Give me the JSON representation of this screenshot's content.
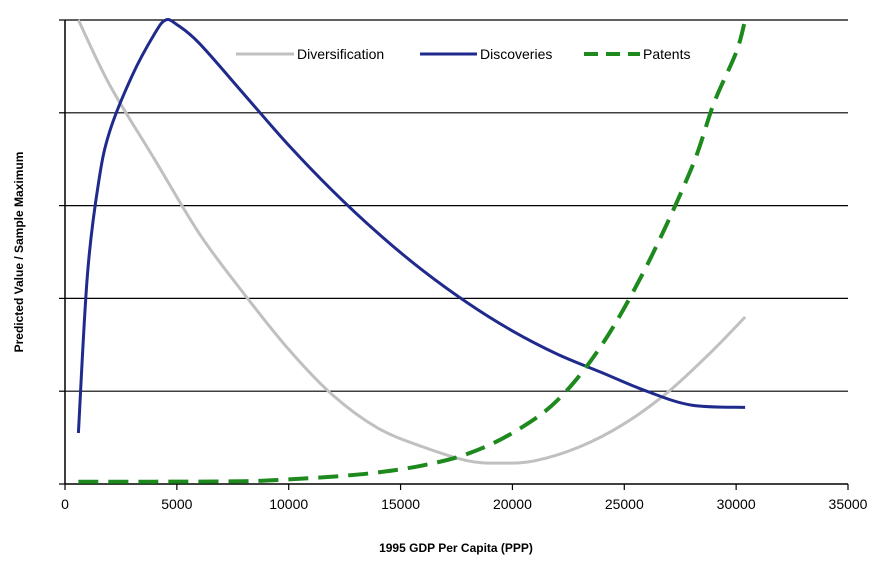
{
  "chart_data": {
    "type": "line",
    "xlabel": "1995 GDP Per Capita (PPP)",
    "ylabel": "Predicted Value / Sample Maximum",
    "xlim": [
      0,
      35000
    ],
    "ylim": [
      0,
      1
    ],
    "x_ticks": [
      "0",
      "5000",
      "10000",
      "15000",
      "20000",
      "25000",
      "30000",
      "35000"
    ],
    "y_gridlines": [
      0.2,
      0.4,
      0.6,
      0.8,
      1.0
    ],
    "grid": "horizontal",
    "legend_position": "top-right",
    "series": [
      {
        "name": "Diversification",
        "color": "#c0c0c0",
        "style": "solid",
        "x": [
          600,
          2000,
          4000,
          6000,
          8000,
          10000,
          12000,
          14000,
          16000,
          18000,
          19500,
          21000,
          23000,
          25000,
          27000,
          29000,
          30400
        ],
        "y": [
          1.0,
          0.86,
          0.7,
          0.54,
          0.41,
          0.29,
          0.19,
          0.12,
          0.08,
          0.05,
          0.045,
          0.05,
          0.08,
          0.13,
          0.2,
          0.29,
          0.36
        ]
      },
      {
        "name": "Discoveries",
        "color": "#1f2a8c",
        "style": "solid",
        "x": [
          600,
          1000,
          1500,
          2000,
          3000,
          4000,
          4500,
          5000,
          6000,
          8000,
          10000,
          12000,
          14000,
          16000,
          18000,
          20000,
          22000,
          24000,
          26000,
          28000,
          30400
        ],
        "y": [
          0.11,
          0.45,
          0.65,
          0.76,
          0.88,
          0.97,
          1.0,
          0.99,
          0.95,
          0.84,
          0.73,
          0.63,
          0.54,
          0.46,
          0.39,
          0.33,
          0.28,
          0.24,
          0.2,
          0.17,
          0.165
        ]
      },
      {
        "name": "Patents",
        "color": "#1e8a1e",
        "style": "dashed",
        "x": [
          600,
          4000,
          8000,
          10000,
          12000,
          14000,
          16000,
          18000,
          20000,
          22000,
          24000,
          26000,
          28000,
          29000,
          30000,
          30400
        ],
        "y": [
          0.005,
          0.005,
          0.006,
          0.01,
          0.016,
          0.025,
          0.04,
          0.065,
          0.11,
          0.18,
          0.3,
          0.47,
          0.68,
          0.82,
          0.93,
          1.0
        ]
      }
    ]
  }
}
